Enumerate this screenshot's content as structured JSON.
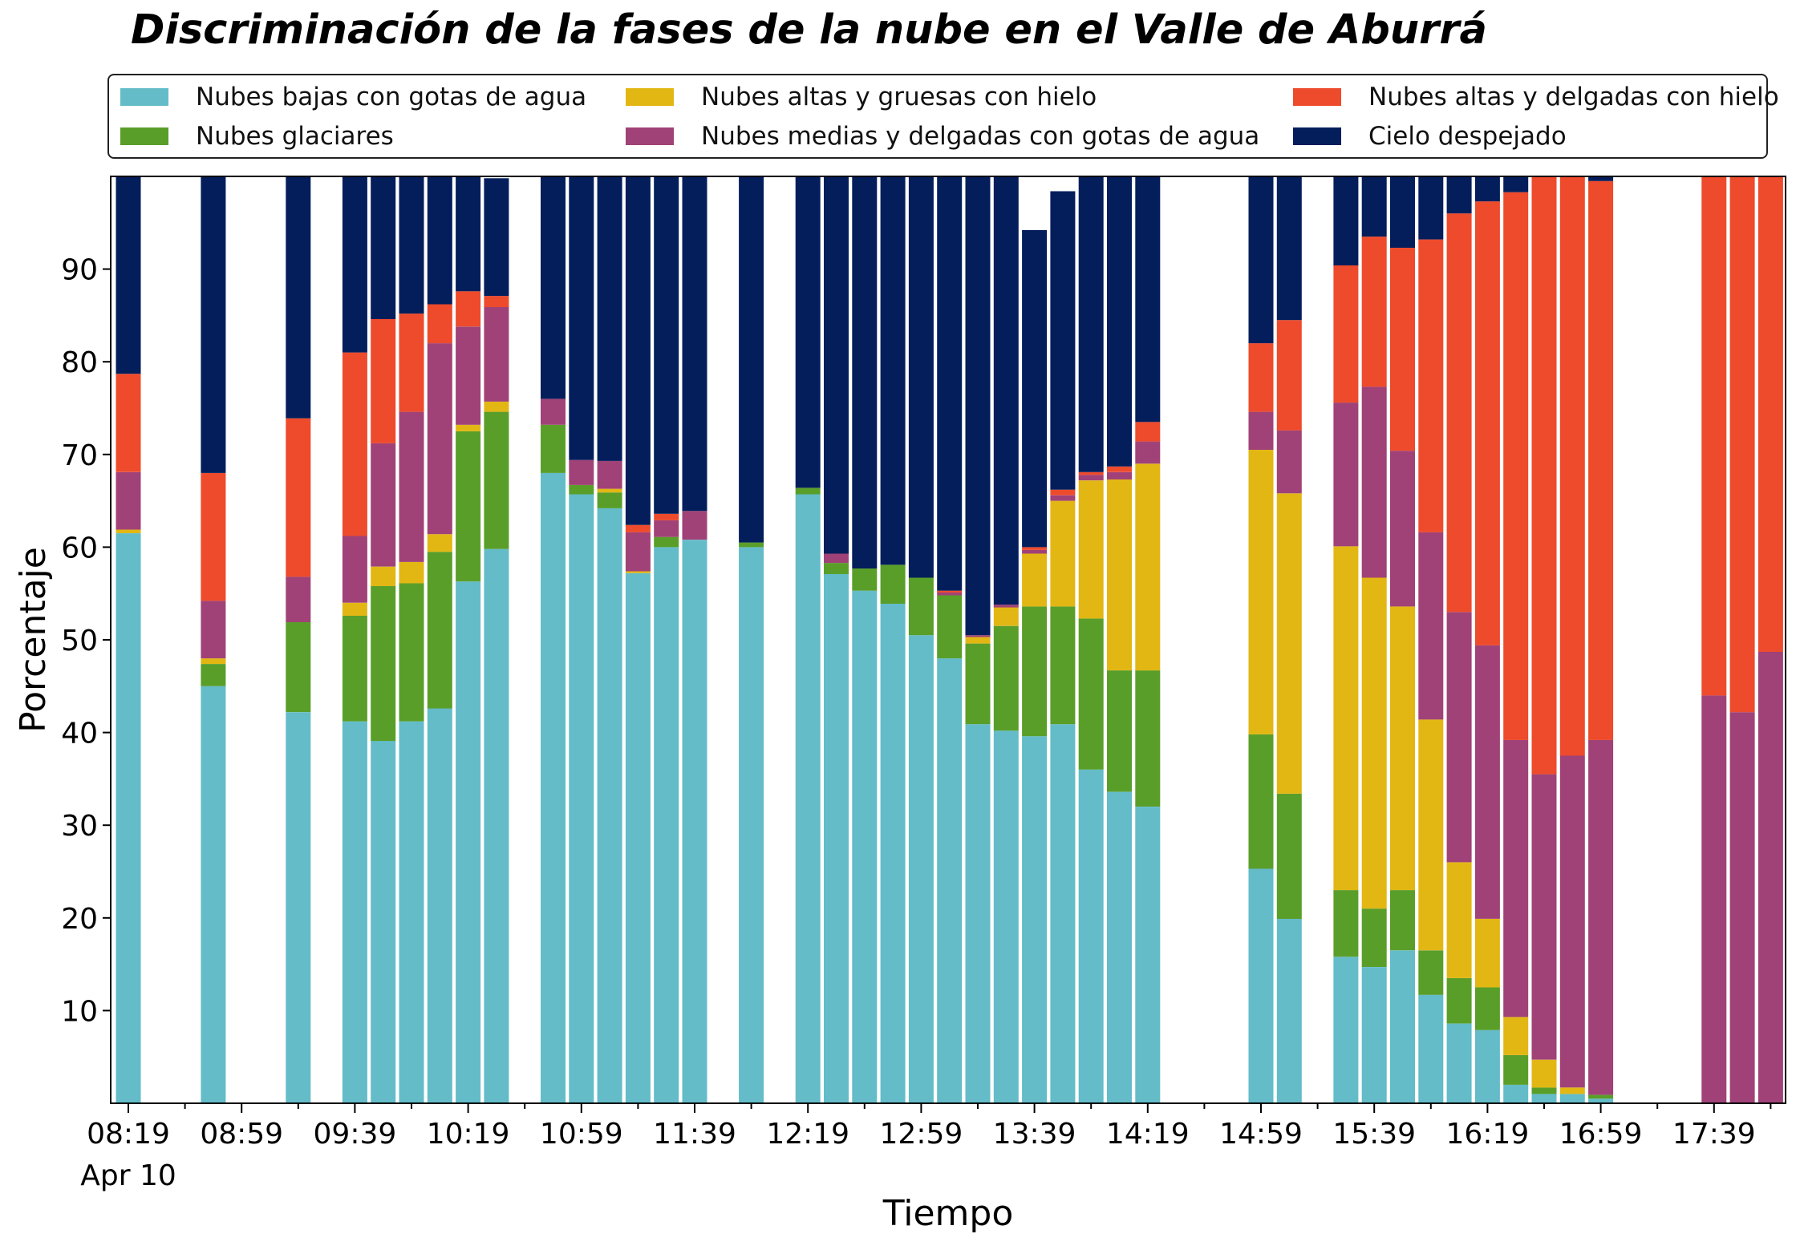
{
  "chart_data": {
    "type": "bar",
    "stacked": true,
    "title": "Discriminación de la fases de la nube en el Valle de Aburrá",
    "xlabel": "Tiempo",
    "ylabel": "Porcentaje",
    "ylim": [
      0,
      100
    ],
    "yticks": [
      10,
      20,
      30,
      40,
      50,
      60,
      70,
      80,
      90
    ],
    "x_tick_labels": [
      {
        "time": "08:19",
        "sub": "Apr 10"
      },
      {
        "time": "08:59",
        "sub": ""
      },
      {
        "time": "09:39",
        "sub": ""
      },
      {
        "time": "10:19",
        "sub": ""
      },
      {
        "time": "10:59",
        "sub": ""
      },
      {
        "time": "11:39",
        "sub": ""
      },
      {
        "time": "12:19",
        "sub": ""
      },
      {
        "time": "12:59",
        "sub": ""
      },
      {
        "time": "13:39",
        "sub": ""
      },
      {
        "time": "14:19",
        "sub": ""
      },
      {
        "time": "14:59",
        "sub": ""
      },
      {
        "time": "15:39",
        "sub": ""
      },
      {
        "time": "16:19",
        "sub": ""
      },
      {
        "time": "16:59",
        "sub": ""
      },
      {
        "time": "17:39",
        "sub": ""
      }
    ],
    "x": [
      "08:19",
      "08:29",
      "08:39",
      "08:49",
      "08:59",
      "09:09",
      "09:19",
      "09:29",
      "09:39",
      "09:49",
      "09:59",
      "10:09",
      "10:19",
      "10:29",
      "10:39",
      "10:49",
      "10:59",
      "11:09",
      "11:19",
      "11:29",
      "11:39",
      "11:49",
      "11:59",
      "12:09",
      "12:19",
      "12:29",
      "12:39",
      "12:49",
      "12:59",
      "13:09",
      "13:19",
      "13:29",
      "13:39",
      "13:49",
      "13:59",
      "14:09",
      "14:19",
      "14:29",
      "14:39",
      "14:49",
      "14:59",
      "15:09",
      "15:19",
      "15:29",
      "15:39",
      "15:49",
      "15:59",
      "16:09",
      "16:19",
      "16:29",
      "16:39",
      "16:49",
      "16:59",
      "17:09",
      "17:19",
      "17:29",
      "17:39",
      "17:49",
      "17:59"
    ],
    "legend_position": "top",
    "series": [
      {
        "name": "Nubes bajas con gotas de agua",
        "color": "#63bcc8",
        "values": [
          61.5,
          0,
          0,
          45,
          0,
          0,
          42.2,
          0,
          41.2,
          39.1,
          41.2,
          42.6,
          56.3,
          59.8,
          0,
          68,
          65.7,
          64.2,
          57.2,
          60,
          60.8,
          0,
          60,
          0,
          65.7,
          57.1,
          55.3,
          53.9,
          50.5,
          48,
          40.9,
          40.2,
          39.6,
          40.9,
          36,
          33.6,
          32,
          0,
          0,
          0,
          25.3,
          19.9,
          0,
          15.8,
          14.7,
          16.5,
          11.7,
          8.6,
          7.9,
          2,
          1,
          1,
          0.5,
          0,
          0,
          0,
          0,
          0,
          0
        ]
      },
      {
        "name": "Nubes glaciares",
        "color": "#5a9e2a",
        "values": [
          0,
          0,
          0,
          2.4,
          0,
          0,
          9.7,
          0,
          11.4,
          16.7,
          14.9,
          16.9,
          16.2,
          14.8,
          0,
          5.2,
          1,
          1.7,
          0,
          1.1,
          0,
          0,
          0.5,
          0,
          0.7,
          1.2,
          2.4,
          4.2,
          6.2,
          6.8,
          8.7,
          11.3,
          14,
          12.7,
          16.3,
          13.1,
          14.7,
          0,
          0,
          0,
          14.5,
          13.5,
          0,
          7.2,
          6.3,
          6.5,
          4.8,
          4.9,
          4.6,
          3.2,
          0.7,
          0,
          0.4,
          0,
          0,
          0,
          0,
          0,
          0
        ]
      },
      {
        "name": "Nubes altas y gruesas con hielo",
        "color": "#e2b714",
        "values": [
          0.4,
          0,
          0,
          0.6,
          0,
          0,
          0,
          0,
          1.4,
          2.1,
          2.3,
          1.9,
          0.7,
          1.1,
          0,
          0,
          0,
          0.4,
          0.2,
          0,
          0,
          0,
          0,
          0,
          0,
          0,
          0,
          0,
          0,
          0,
          0.7,
          2,
          5.7,
          11.4,
          14.9,
          20.6,
          22.3,
          0,
          0,
          0,
          30.7,
          32.4,
          0,
          37.1,
          35.7,
          30.6,
          24.9,
          12.5,
          7.4,
          4.1,
          3,
          0.7,
          0,
          0,
          0,
          0,
          0,
          0,
          0
        ]
      },
      {
        "name": "Nubes medias y delgadas con gotas de agua",
        "color": "#a04277",
        "values": [
          6.2,
          0,
          0,
          6.2,
          0,
          0,
          4.9,
          0,
          7.2,
          13.3,
          16.2,
          20.6,
          10.6,
          10.2,
          0,
          2.8,
          2.7,
          3,
          4.2,
          1.8,
          3.1,
          0,
          0,
          0,
          0,
          1,
          0,
          0,
          0,
          0.3,
          0.2,
          0.3,
          0.4,
          0.6,
          0.6,
          0.8,
          2.4,
          0,
          0,
          0,
          4.1,
          6.8,
          0,
          15.5,
          20.6,
          16.8,
          20.2,
          27,
          29.5,
          29.9,
          30.8,
          35.8,
          38.3,
          0,
          0,
          0,
          44,
          42.2,
          48.7
        ]
      },
      {
        "name": "Nubes altas y delgadas con hielo",
        "color": "#ee4a2c",
        "values": [
          10.6,
          0,
          0,
          13.8,
          0,
          0,
          17.1,
          0,
          19.8,
          13.4,
          10.6,
          4.2,
          3.8,
          1.2,
          0,
          0,
          0,
          0,
          0.8,
          0.7,
          0,
          0,
          0,
          0,
          0,
          0,
          0,
          0,
          0,
          0.2,
          0,
          0,
          0.3,
          0.6,
          0.3,
          0.6,
          2.1,
          0,
          0,
          0,
          7.4,
          11.9,
          0,
          14.8,
          16.2,
          21.9,
          31.6,
          43,
          47.9,
          59.1,
          64.5,
          62.5,
          60.3,
          0,
          0,
          0,
          56,
          57.8,
          51.3
        ]
      },
      {
        "name": "Cielo despejado",
        "color": "#041e5c",
        "values": [
          21.3,
          0,
          0,
          32,
          0,
          0,
          26.1,
          0,
          19,
          15.4,
          14.8,
          13.8,
          12.4,
          12.7,
          0,
          24,
          30.6,
          30.7,
          37.6,
          36.4,
          36.1,
          0,
          39.5,
          0,
          33.6,
          40.7,
          42.3,
          41.9,
          43.3,
          44.7,
          49.5,
          46.2,
          34.2,
          32.2,
          31.9,
          31.3,
          26.5,
          0,
          0,
          0,
          18,
          15.5,
          0,
          9.6,
          6.5,
          7.7,
          6.8,
          4,
          2.7,
          1.7,
          0,
          0,
          0.5,
          0,
          0,
          0,
          0,
          0,
          0
        ]
      }
    ]
  }
}
